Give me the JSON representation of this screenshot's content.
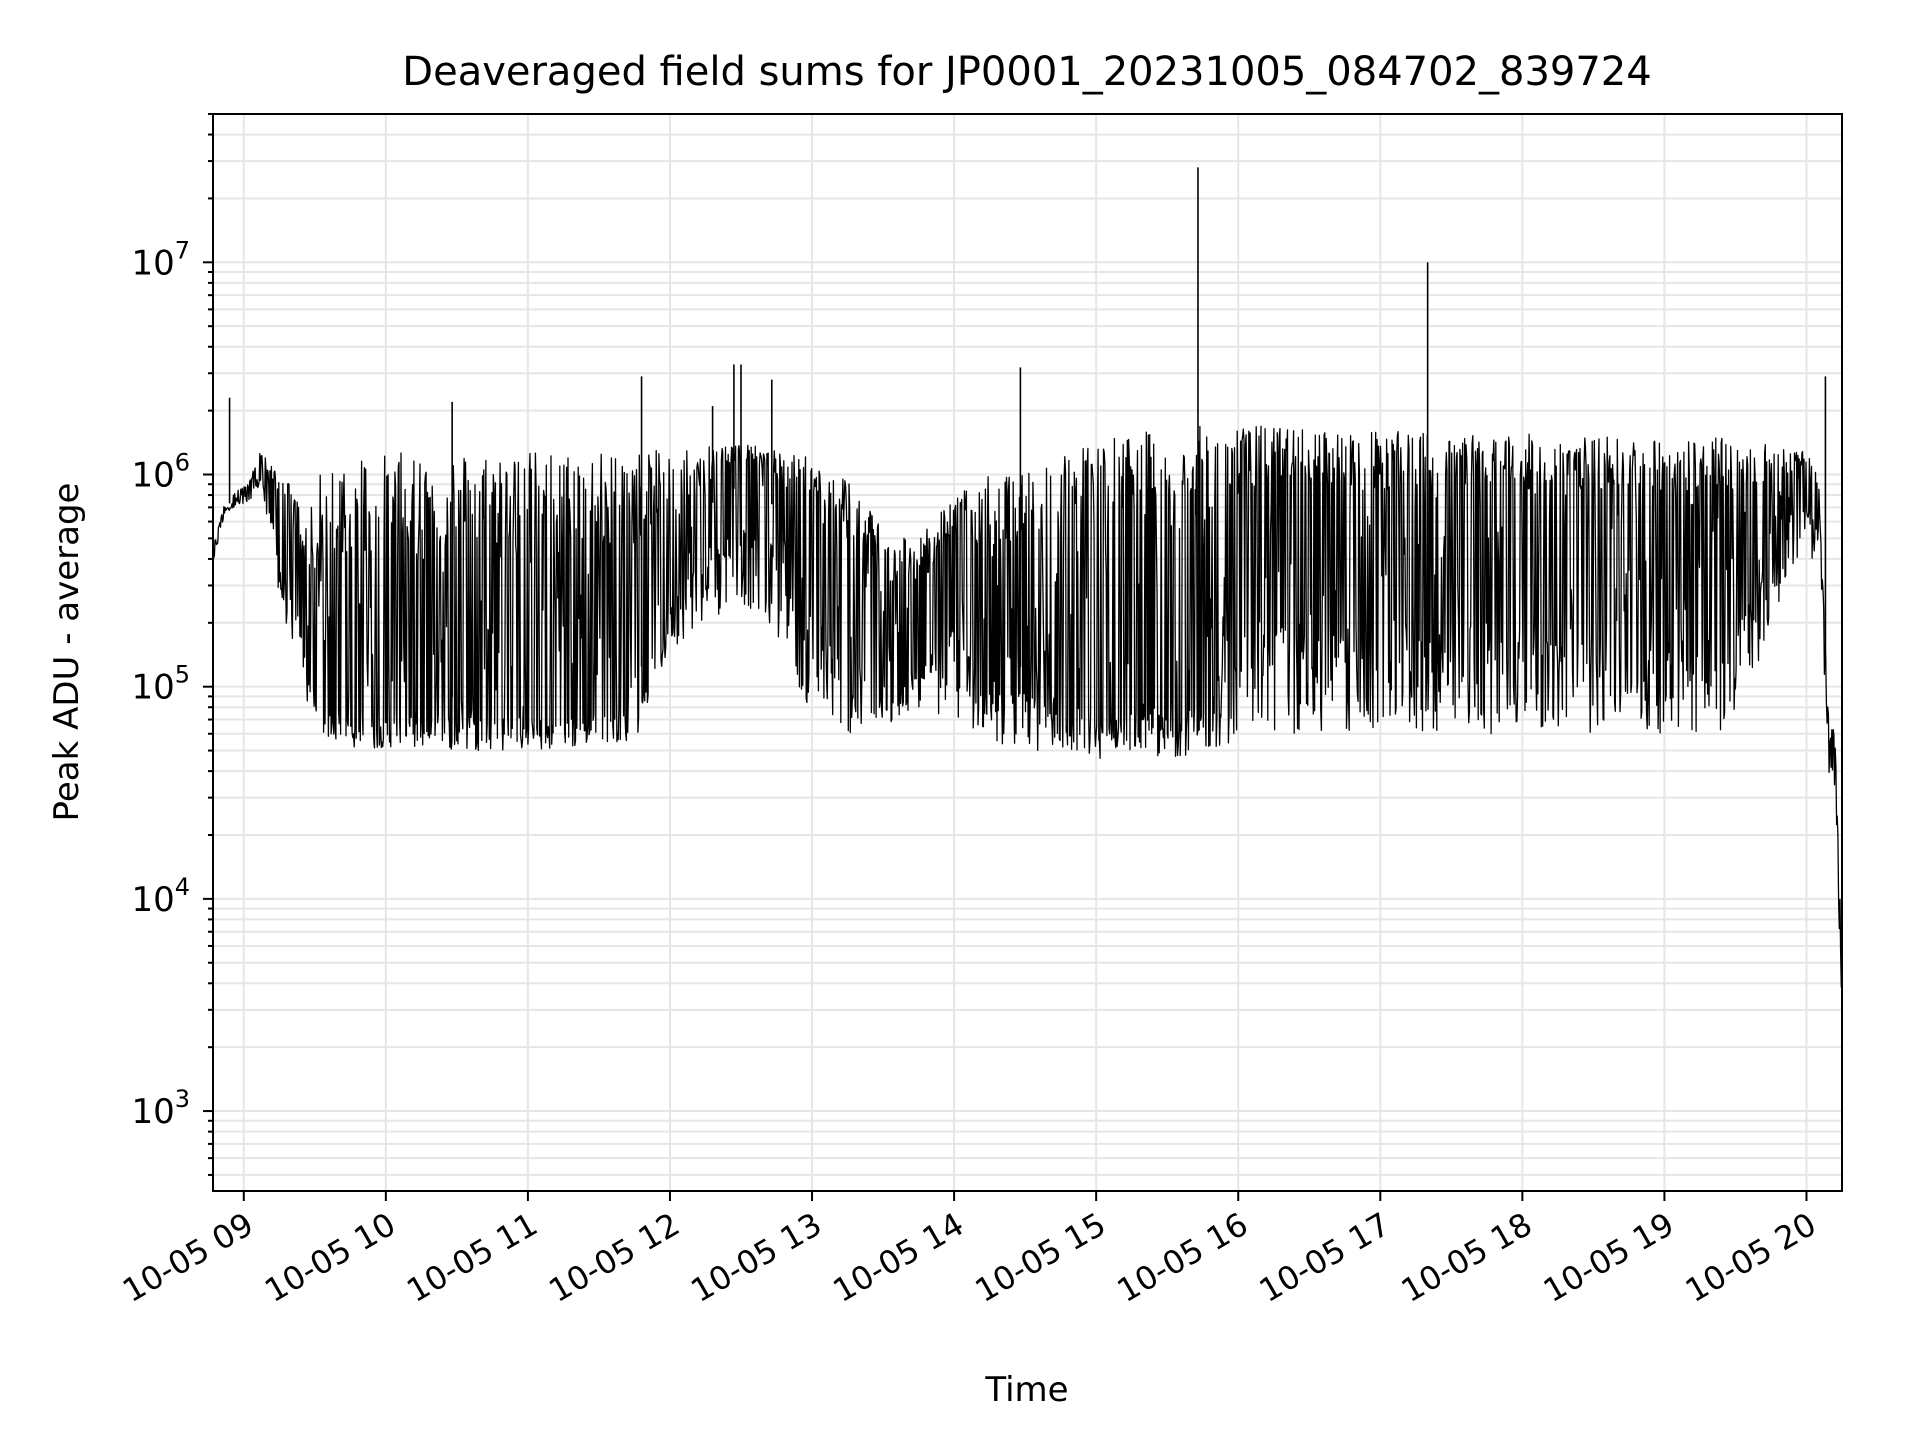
{
  "chart_data": {
    "type": "line",
    "title": "Deaveraged field sums for JP0001_20231005_084702_839724",
    "xlabel": "Time",
    "ylabel": "Peak ADU - average",
    "yscale": "log",
    "ylim": [
      420,
      50000000
    ],
    "xlim": [
      "2023-10-05 08:47",
      "2023-10-05 20:15"
    ],
    "grid": true,
    "line_color": "#000000",
    "grid_color": "#e6e6e6",
    "x_tick_labels": [
      "10-05 09",
      "10-05 10",
      "10-05 11",
      "10-05 12",
      "10-05 13",
      "10-05 14",
      "10-05 15",
      "10-05 16",
      "10-05 17",
      "10-05 18",
      "10-05 19",
      "10-05 20"
    ],
    "y_tick_labels": [
      {
        "base": "10",
        "exp": "3",
        "value": 1000
      },
      {
        "base": "10",
        "exp": "4",
        "value": 10000
      },
      {
        "base": "10",
        "exp": "5",
        "value": 100000
      },
      {
        "base": "10",
        "exp": "6",
        "value": 1000000
      },
      {
        "base": "10",
        "exp": "7",
        "value": 10000000
      }
    ],
    "series": [
      {
        "x": [
          "2023-10-05 08:47",
          "2023-10-05 08:52",
          "2023-10-05 08:57",
          "2023-10-05 09:02",
          "2023-10-05 09:07",
          "2023-10-05 09:12",
          "2023-10-05 09:17",
          "2023-10-05 09:22",
          "2023-10-05 09:27",
          "2023-10-05 09:32",
          "2023-10-05 09:40",
          "2023-10-05 09:50",
          "2023-10-05 10:00",
          "2023-10-05 10:15",
          "2023-10-05 10:30",
          "2023-10-05 10:45",
          "2023-10-05 11:00",
          "2023-10-05 11:15",
          "2023-10-05 11:30",
          "2023-10-05 11:45",
          "2023-10-05 12:00",
          "2023-10-05 12:15",
          "2023-10-05 12:30",
          "2023-10-05 12:45",
          "2023-10-05 13:00",
          "2023-10-05 13:15",
          "2023-10-05 13:30",
          "2023-10-05 13:45",
          "2023-10-05 14:00",
          "2023-10-05 14:15",
          "2023-10-05 14:30",
          "2023-10-05 14:45",
          "2023-10-05 15:00",
          "2023-10-05 15:15",
          "2023-10-05 15:30",
          "2023-10-05 15:45",
          "2023-10-05 16:00",
          "2023-10-05 16:15",
          "2023-10-05 16:30",
          "2023-10-05 16:45",
          "2023-10-05 17:00",
          "2023-10-05 17:15",
          "2023-10-05 17:30",
          "2023-10-05 17:45",
          "2023-10-05 18:00",
          "2023-10-05 18:15",
          "2023-10-05 18:30",
          "2023-10-05 18:45",
          "2023-10-05 19:00",
          "2023-10-05 19:15",
          "2023-10-05 19:30",
          "2023-10-05 19:45",
          "2023-10-05 20:00",
          "2023-10-05 20:05",
          "2023-10-05 20:09",
          "2023-10-05 20:12",
          "2023-10-05 20:15"
        ],
        "y_median": [
          400000,
          700000,
          780000,
          800000,
          1100000,
          700000,
          450000,
          250000,
          150000,
          90000,
          75000,
          70000,
          80000,
          85000,
          90000,
          95000,
          85000,
          80000,
          90000,
          100000,
          300000,
          700000,
          900000,
          700000,
          400000,
          200000,
          100000,
          150000,
          300000,
          150000,
          120000,
          100000,
          100000,
          95000,
          90000,
          100000,
          300000,
          350000,
          350000,
          350000,
          350000,
          350000,
          350000,
          350000,
          350000,
          350000,
          350000,
          350000,
          350000,
          350000,
          350000,
          500000,
          900000,
          700000,
          70000,
          50000,
          4000
        ],
        "y_high": [
          450000,
          750000,
          850000,
          900000,
          1300000,
          1100000,
          1000000,
          800000,
          600000,
          1000000,
          1300000,
          1300000,
          1250000,
          1300000,
          1300000,
          1300000,
          1300000,
          1300000,
          1300000,
          1300000,
          1300000,
          1400000,
          1400000,
          1300000,
          1200000,
          1000000,
          600000,
          500000,
          800000,
          1000000,
          1000000,
          1400000,
          1500000,
          1600000,
          1600000,
          1700000,
          1700000,
          1700000,
          1650000,
          1600000,
          1600000,
          1600000,
          1550000,
          1550000,
          1550000,
          1550000,
          1500000,
          1500000,
          1500000,
          1500000,
          1500000,
          1400000,
          1300000,
          1000000,
          80000,
          60000,
          5000
        ],
        "y_low": [
          380000,
          650000,
          720000,
          700000,
          900000,
          400000,
          200000,
          150000,
          80000,
          60000,
          55000,
          50000,
          52000,
          50000,
          50000,
          50000,
          50000,
          50000,
          55000,
          55000,
          150000,
          200000,
          250000,
          180000,
          70000,
          60000,
          60000,
          80000,
          70000,
          55000,
          50000,
          50000,
          45000,
          50000,
          45000,
          50000,
          55000,
          60000,
          60000,
          60000,
          60000,
          60000,
          60000,
          60000,
          60000,
          60000,
          60000,
          60000,
          60000,
          60000,
          60000,
          200000,
          500000,
          300000,
          40000,
          30000,
          3000
        ]
      }
    ],
    "spikes": [
      {
        "x": "2023-10-05 08:54",
        "y": 2300000
      },
      {
        "x": "2023-10-05 10:28",
        "y": 2200000
      },
      {
        "x": "2023-10-05 11:48",
        "y": 2900000
      },
      {
        "x": "2023-10-05 12:18",
        "y": 2100000
      },
      {
        "x": "2023-10-05 12:27",
        "y": 3300000
      },
      {
        "x": "2023-10-05 12:30",
        "y": 3300000
      },
      {
        "x": "2023-10-05 12:43",
        "y": 2800000
      },
      {
        "x": "2023-10-05 14:28",
        "y": 3200000
      },
      {
        "x": "2023-10-05 15:43",
        "y": 28000000
      },
      {
        "x": "2023-10-05 17:20",
        "y": 10000000
      },
      {
        "x": "2023-10-05 20:08",
        "y": 2900000
      }
    ]
  }
}
